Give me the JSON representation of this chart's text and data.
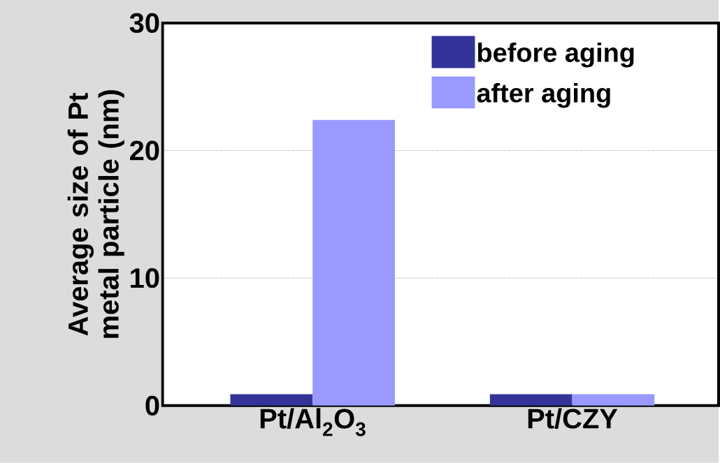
{
  "chart_data": {
    "type": "bar",
    "ylabel": "Average size of Pt metal particle (nm)",
    "categories": [
      "Pt/Al$_{2}$O$_{3}$",
      "Pt/CZY"
    ],
    "series": [
      {
        "name": "before aging",
        "color": "#333399",
        "values": [
          0.9,
          0.9
        ]
      },
      {
        "name": "after aging",
        "color": "#9999ff",
        "values": [
          22.4,
          0.9
        ]
      }
    ],
    "ylim": [
      0,
      30
    ],
    "yticks": [
      0,
      10,
      20,
      30
    ],
    "grid": "y",
    "legend": "top right"
  }
}
